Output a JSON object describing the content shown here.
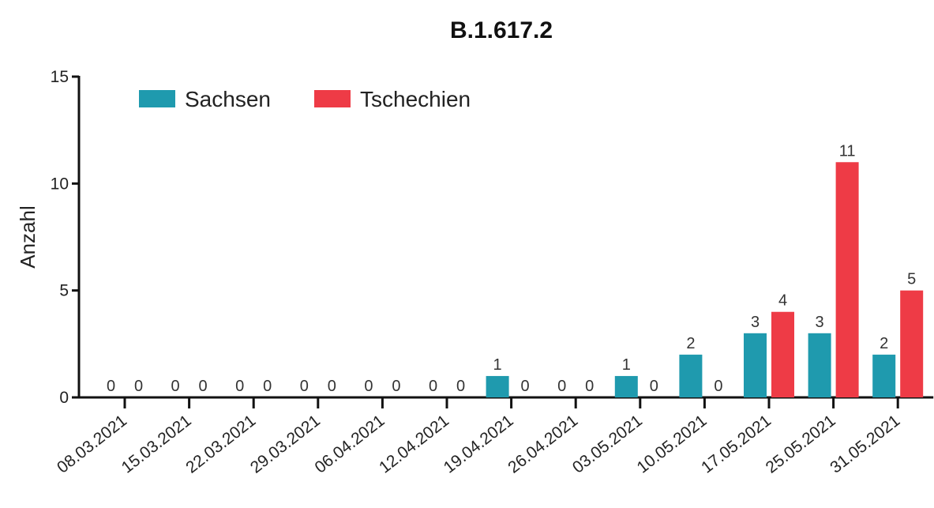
{
  "chart_data": {
    "type": "bar",
    "title": "B.1.617.2",
    "xlabel": "",
    "ylabel": "Anzahl",
    "ylim": [
      0,
      15
    ],
    "yticks": [
      0,
      5,
      10,
      15
    ],
    "grid": false,
    "legend_position": "top-left",
    "categories": [
      "08.03.2021",
      "15.03.2021",
      "22.03.2021",
      "29.03.2021",
      "06.04.2021",
      "12.04.2021",
      "19.04.2021",
      "26.04.2021",
      "03.05.2021",
      "10.05.2021",
      "17.05.2021",
      "25.05.2021",
      "31.05.2021"
    ],
    "series": [
      {
        "name": "Sachsen",
        "color": "#1F9AAE",
        "values": [
          0,
          0,
          0,
          0,
          0,
          0,
          1,
          0,
          1,
          2,
          3,
          3,
          2
        ]
      },
      {
        "name": "Tschechien",
        "color": "#EE3B46",
        "values": [
          0,
          0,
          0,
          0,
          0,
          0,
          0,
          0,
          0,
          0,
          4,
          11,
          5
        ]
      }
    ]
  }
}
